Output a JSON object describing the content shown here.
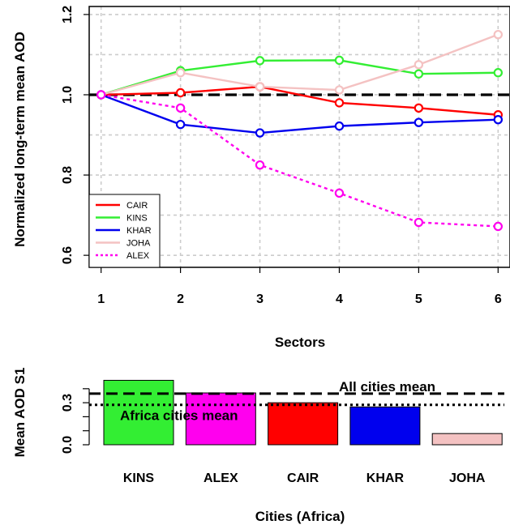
{
  "chart_data": [
    {
      "type": "line",
      "xlabel": "Sectors",
      "ylabel": "Normalized long-term mean AOD",
      "x": [
        1,
        2,
        3,
        4,
        5,
        6
      ],
      "xticks": [
        "1",
        "2",
        "3",
        "4",
        "5",
        "6"
      ],
      "yticks": [
        "0.6",
        "0.8",
        "1.0",
        "1.2"
      ],
      "xlim": [
        0.85,
        6.15
      ],
      "ylim": [
        0.57,
        1.22
      ],
      "grid": true,
      "legend_position": "bottom-left",
      "reference_line": 1.0,
      "series": [
        {
          "name": "CAIR",
          "color": "#ff0000",
          "style": "solid",
          "values": [
            1.0,
            1.005,
            1.02,
            0.98,
            0.967,
            0.95
          ]
        },
        {
          "name": "KINS",
          "color": "#33ee33",
          "style": "solid",
          "values": [
            1.0,
            1.06,
            1.085,
            1.086,
            1.052,
            1.055
          ]
        },
        {
          "name": "KHAR",
          "color": "#0000ee",
          "style": "solid",
          "values": [
            1.0,
            0.926,
            0.905,
            0.922,
            0.931,
            0.938
          ]
        },
        {
          "name": "JOHA",
          "color": "#f4c2c2",
          "style": "solid",
          "values": [
            1.0,
            1.055,
            1.02,
            1.012,
            1.075,
            1.15
          ]
        },
        {
          "name": "ALEX",
          "color": "#ff00ee",
          "style": "dotted",
          "values": [
            1.0,
            0.967,
            0.825,
            0.755,
            0.682,
            0.672
          ]
        }
      ]
    },
    {
      "type": "bar",
      "xlabel": "Cities (Africa)",
      "ylabel": "Mean AOD S1",
      "categories": [
        "KINS",
        "ALEX",
        "CAIR",
        "KHAR",
        "JOHA"
      ],
      "values": [
        0.46,
        0.37,
        0.3,
        0.27,
        0.08
      ],
      "colors": [
        "#33ee33",
        "#ff00ee",
        "#ff0000",
        "#0000ee",
        "#f4c2c2"
      ],
      "yticks": [
        "0.0",
        "0.3"
      ],
      "ylim": [
        0.0,
        0.48
      ],
      "reference_lines": [
        {
          "label": "All cities mean",
          "value": 0.365,
          "style": "dashed"
        },
        {
          "label": "Africa cities mean",
          "value": 0.285,
          "style": "dotted"
        }
      ]
    }
  ]
}
